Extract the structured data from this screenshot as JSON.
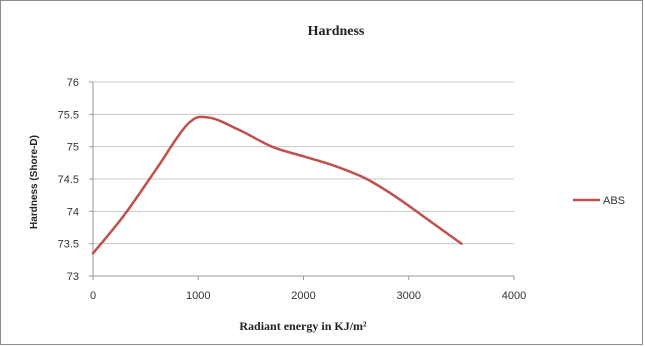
{
  "chart_data": {
    "type": "line",
    "title": "Hardness",
    "xlabel": "Radiant energy in KJ/m²",
    "ylabel": "Hardness (Shore-D)",
    "xlim": [
      0,
      4000
    ],
    "ylim": [
      73,
      76
    ],
    "x_ticks": [
      "0",
      "1000",
      "2000",
      "3000",
      "4000"
    ],
    "y_ticks": [
      "73",
      "73.5",
      "74",
      "74.5",
      "75",
      "75.5",
      "76"
    ],
    "grid": true,
    "legend": "right",
    "series": [
      {
        "name": "ABS",
        "color": "#c0504d",
        "points": [
          {
            "x": 0,
            "y": 73.35
          },
          {
            "x": 300,
            "y": 73.95
          },
          {
            "x": 600,
            "y": 74.65
          },
          {
            "x": 900,
            "y": 75.35
          },
          {
            "x": 1100,
            "y": 75.45
          },
          {
            "x": 1400,
            "y": 75.25
          },
          {
            "x": 1700,
            "y": 75.0
          },
          {
            "x": 2000,
            "y": 74.85
          },
          {
            "x": 2300,
            "y": 74.7
          },
          {
            "x": 2600,
            "y": 74.5
          },
          {
            "x": 2900,
            "y": 74.2
          },
          {
            "x": 3200,
            "y": 73.85
          },
          {
            "x": 3500,
            "y": 73.5
          }
        ]
      }
    ]
  }
}
